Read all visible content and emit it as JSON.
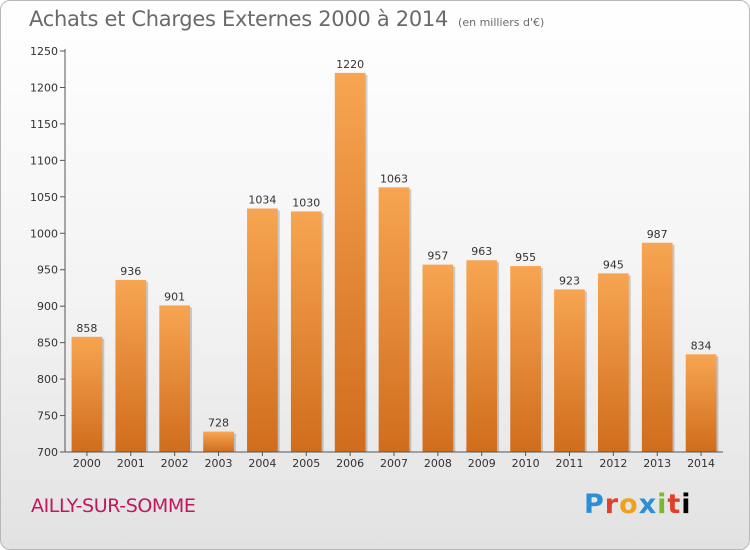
{
  "header": {
    "title": "Achats et Charges Externes 2000 à 2014",
    "unit": "(en milliers d'€)"
  },
  "footer": {
    "place": "AILLY-SUR-SOMME",
    "logo_letters": [
      "P",
      "r",
      "o",
      "x",
      "i",
      "t",
      "i"
    ]
  },
  "colors": {
    "bar_light": "#f7a552",
    "bar_dark": "#d06d1c",
    "place": "#c0175d"
  },
  "chart_data": {
    "type": "bar",
    "title": "Achats et Charges Externes 2000 à 2014",
    "subtitle": "(en milliers d'€)",
    "categories": [
      "2000",
      "2001",
      "2002",
      "2003",
      "2004",
      "2005",
      "2006",
      "2007",
      "2008",
      "2009",
      "2010",
      "2011",
      "2012",
      "2013",
      "2014"
    ],
    "values": [
      858,
      936,
      901,
      728,
      1034,
      1030,
      1220,
      1063,
      957,
      963,
      955,
      923,
      945,
      987,
      834
    ],
    "ylim": [
      700,
      1250
    ],
    "yticks": [
      700,
      750,
      800,
      850,
      900,
      950,
      1000,
      1050,
      1100,
      1150,
      1200,
      1250
    ],
    "grid": false,
    "data_labels": true
  }
}
